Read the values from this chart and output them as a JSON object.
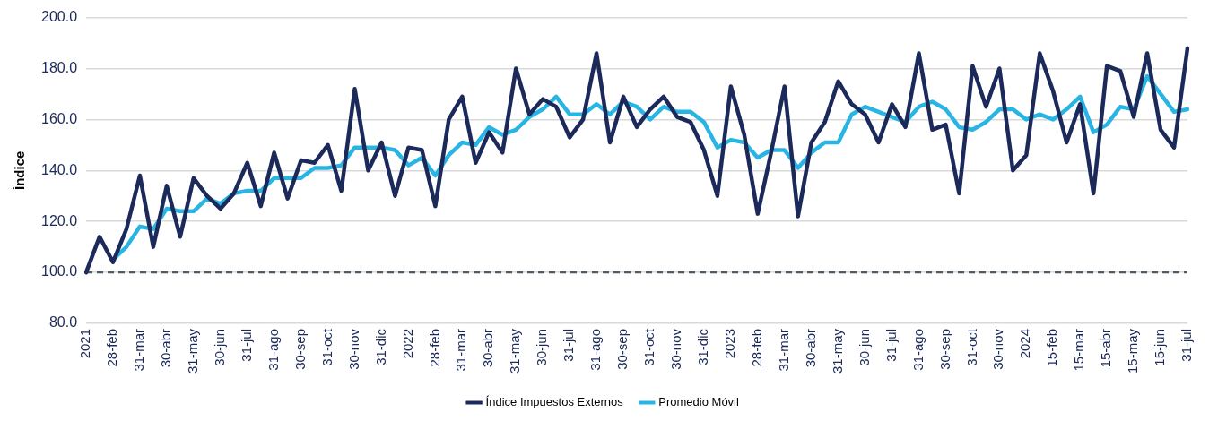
{
  "chart_data": {
    "type": "line",
    "ylabel": "Índice",
    "categories": [
      "2021",
      null,
      "28-feb",
      null,
      "31-mar",
      null,
      "30-abr",
      null,
      "31-may",
      null,
      "30-jun",
      null,
      "31-jul",
      null,
      "31-ago",
      null,
      "30-sep",
      null,
      "31-oct",
      null,
      "30-nov",
      null,
      "31-dic",
      null,
      "2022",
      null,
      "28-feb",
      null,
      "31-mar",
      null,
      "30-abr",
      null,
      "31-may",
      null,
      "30-jun",
      null,
      "31-jul",
      null,
      "31-ago",
      null,
      "30-sep",
      null,
      "31-oct",
      null,
      "30-nov",
      null,
      "31-dic",
      null,
      "2023",
      null,
      "28-feb",
      null,
      "31-mar",
      null,
      "30-abr",
      null,
      "31-may",
      null,
      "30-jun",
      null,
      "31-jul",
      null,
      "31-ago",
      null,
      "30-sep",
      null,
      "31-oct",
      null,
      "30-nov",
      null,
      "2024",
      null,
      "15-feb",
      null,
      "15-mar",
      null,
      "15-abr",
      null,
      "15-may",
      null,
      "15-jun",
      null,
      "31-jul"
    ],
    "series": [
      {
        "name": "Índice Impuestos Externos",
        "color": "#1b2a5a",
        "values": [
          100,
          114,
          104,
          117,
          138,
          110,
          134,
          114,
          137,
          130,
          125,
          131,
          143,
          126,
          147,
          129,
          144,
          143,
          150,
          132,
          172,
          140,
          151,
          130,
          149,
          148,
          126,
          160,
          169,
          143,
          155,
          147,
          180,
          162,
          168,
          165,
          153,
          160,
          186,
          151,
          169,
          157,
          164,
          169,
          161,
          159,
          148,
          130,
          173,
          154,
          123,
          147,
          173,
          122,
          151,
          159,
          175,
          166,
          162,
          151,
          166,
          157,
          186,
          156,
          158,
          131,
          181,
          165,
          180,
          140,
          146,
          186,
          171,
          151,
          166,
          131,
          181,
          179,
          161,
          186,
          156,
          149,
          188
        ]
      },
      {
        "name": "Promedio Móvil",
        "color": "#29b5e3",
        "values": [
          null,
          null,
          105,
          110,
          118,
          117,
          125,
          124,
          124,
          129,
          127,
          131,
          132,
          132,
          137,
          137,
          137,
          141,
          141,
          142,
          149,
          149,
          149,
          148,
          142,
          145,
          138,
          146,
          151,
          150,
          157,
          154,
          156,
          161,
          164,
          169,
          162,
          162,
          166,
          162,
          167,
          165,
          160,
          165,
          163,
          163,
          159,
          149,
          152,
          151,
          145,
          148,
          148,
          141,
          147,
          151,
          151,
          162,
          165,
          163,
          161,
          159,
          165,
          167,
          164,
          157,
          156,
          159,
          164,
          164,
          160,
          162,
          160,
          164,
          169,
          155,
          158,
          165,
          164,
          177,
          170,
          163,
          164
        ]
      }
    ],
    "ylim": [
      80,
      200
    ],
    "yticks": [
      {
        "value": 80,
        "label": "80.0"
      },
      {
        "value": 100,
        "label": "100.0"
      },
      {
        "value": 120,
        "label": "120.0"
      },
      {
        "value": 140,
        "label": "140.0"
      },
      {
        "value": 160,
        "label": "160.0"
      },
      {
        "value": 180,
        "label": "180.0"
      },
      {
        "value": 200,
        "label": "200.0"
      }
    ],
    "ref_lines": [
      {
        "axis": "y",
        "value": 100,
        "color": "#4a5a66",
        "line_style": "dashed"
      }
    ],
    "grid": "y",
    "legend": "bottom",
    "marker": "none",
    "line_style": "solid"
  }
}
